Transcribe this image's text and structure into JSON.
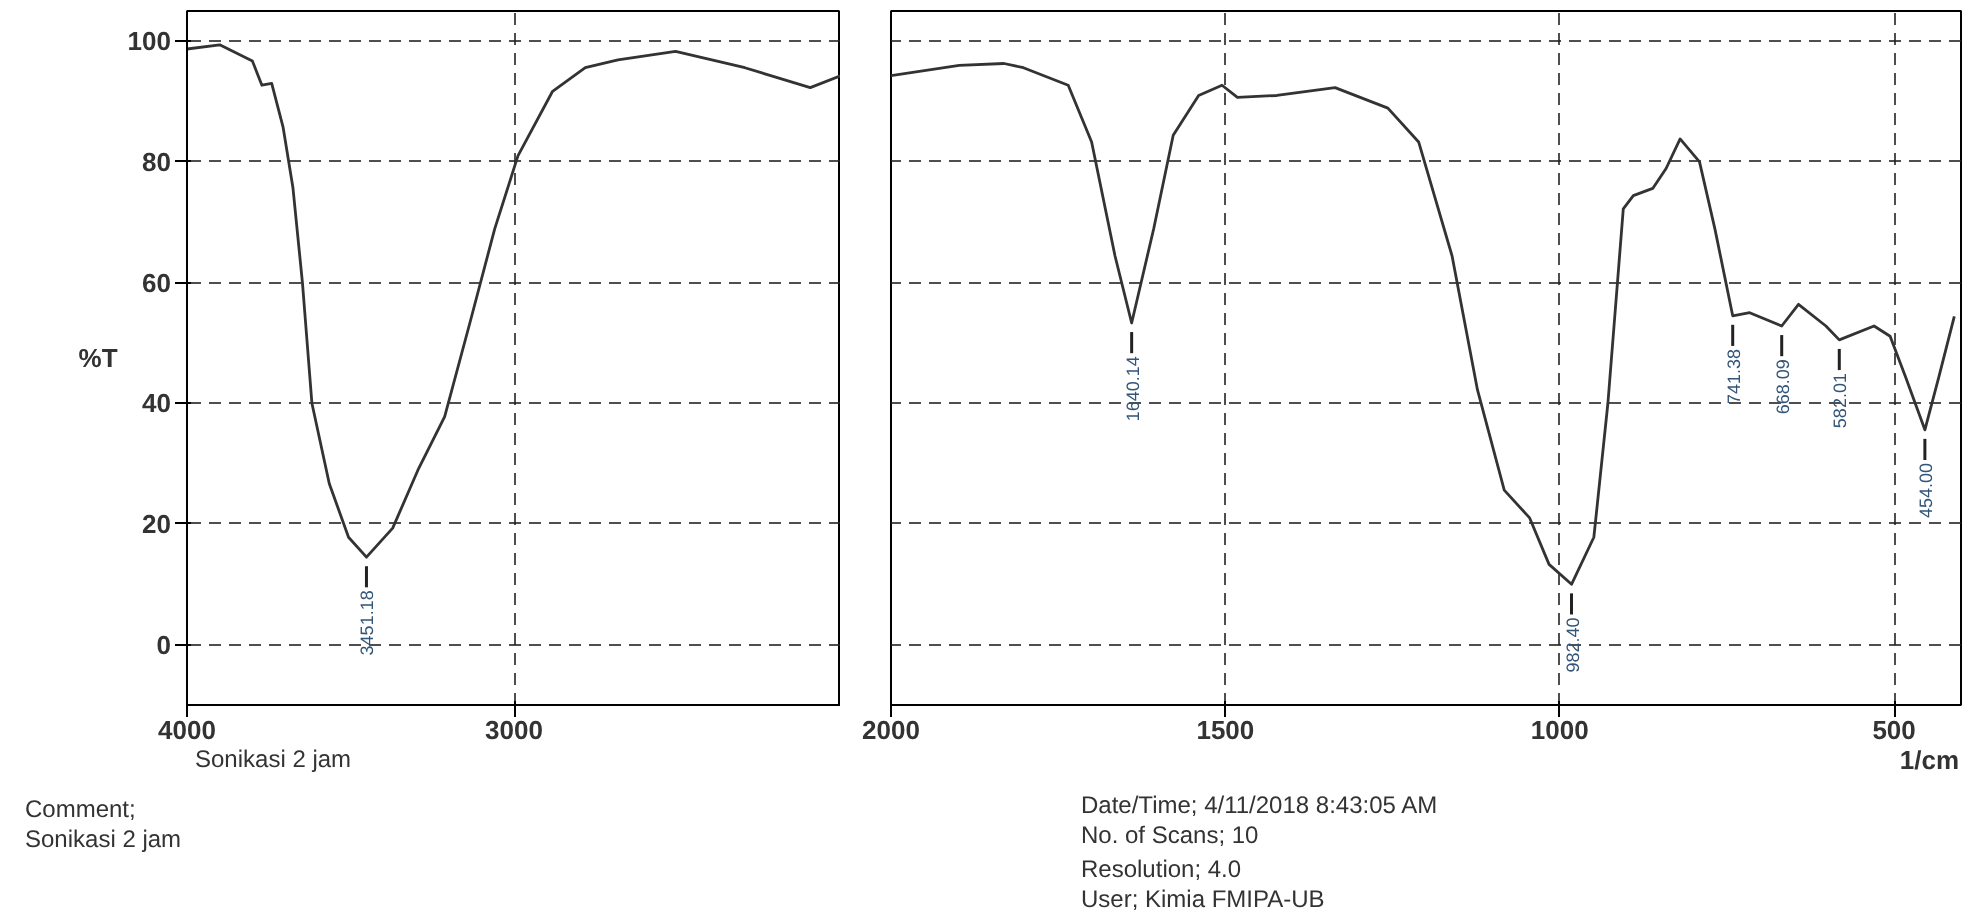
{
  "chart_data": [
    {
      "type": "line",
      "ylabel": "%T",
      "x": [
        4000,
        3900,
        3800,
        3771,
        3741,
        3706,
        3676,
        3647,
        3618,
        3565,
        3506,
        3451.18,
        3371,
        3294,
        3212,
        3135,
        3059,
        2988,
        2882,
        2782,
        2682,
        2506,
        2294,
        2094,
        2000
      ],
      "series": [
        {
          "color": "#333333",
          "values": [
            98.7,
            99.4,
            96.7,
            92.7,
            93,
            85.7,
            75.7,
            60,
            40,
            26.7,
            17.8,
            14.5,
            19.3,
            28.9,
            37.8,
            53.3,
            68.9,
            81,
            91.7,
            95.6,
            96.9,
            98.3,
            95.6,
            92.3,
            94.3
          ]
        }
      ],
      "xlim": [
        4000,
        2000
      ],
      "xticks": [
        4000,
        3000
      ],
      "ylim": [
        -10,
        105
      ],
      "yticks": [
        0,
        20,
        40,
        60,
        80,
        100
      ],
      "grid": true,
      "line_style": "solid",
      "marker": "none",
      "annotations": [
        {
          "text": "3451.18",
          "x": 3451.18,
          "y": 14.5
        },
        "Sonikasi 2 jam",
        "Comment;",
        "Sonikasi 2 jam",
        "Date/Time;   4/11/2018 8:43:05 AM",
        "No. of Scans; 10",
        "Resolution;   4.0",
        "User;            Kimia FMIPA-UB"
      ]
    },
    {
      "type": "line",
      "xlabel": "1/cm",
      "x": [
        2000,
        1898,
        1831,
        1802,
        1735,
        1700,
        1665,
        1640.14,
        1607,
        1578,
        1540,
        1505,
        1482,
        1423,
        1336,
        1257,
        1211,
        1161,
        1123,
        1083,
        1045,
        1016,
        982.4,
        949,
        928,
        905,
        890,
        861,
        841,
        820,
        791,
        768,
        741.38,
        716,
        668.09,
        643,
        602,
        582.01,
        530,
        506,
        483,
        454,
        433,
        410
      ],
      "series": [
        {
          "color": "#333333",
          "values": [
            94.3,
            96,
            96.3,
            95.6,
            92.7,
            83.3,
            64.4,
            53.3,
            69,
            84.4,
            91,
            92.7,
            90.7,
            91,
            92.3,
            88.9,
            83.3,
            64.4,
            42.2,
            25.6,
            21,
            13.3,
            10,
            17.8,
            40,
            72.2,
            74.4,
            75.6,
            78.9,
            83.8,
            80,
            68.9,
            54.5,
            55,
            52.8,
            56.4,
            52.8,
            50.5,
            52.8,
            51.1,
            44.4,
            35.6,
            44.4,
            54.4
          ]
        }
      ],
      "xlim": [
        2000,
        400
      ],
      "xticks": [
        2000,
        1500,
        1000,
        500
      ],
      "ylim": [
        -10,
        105
      ],
      "yticks": [
        0,
        20,
        40,
        60,
        80,
        100
      ],
      "tick_labels": "x",
      "grid": true,
      "line_style": "solid",
      "marker": "none",
      "annotations": [
        {
          "text": "1640.14",
          "x": 1640.14,
          "y": 53.3
        },
        {
          "text": "982.40",
          "x": 982.4,
          "y": 10
        },
        {
          "text": "741.38",
          "x": 741.38,
          "y": 54.5
        },
        {
          "text": "668.09",
          "x": 668.09,
          "y": 52.8
        },
        {
          "text": "582.01",
          "x": 582.01,
          "y": 50.5
        },
        {
          "text": "454.00",
          "x": 454,
          "y": 35.6
        }
      ]
    }
  ]
}
